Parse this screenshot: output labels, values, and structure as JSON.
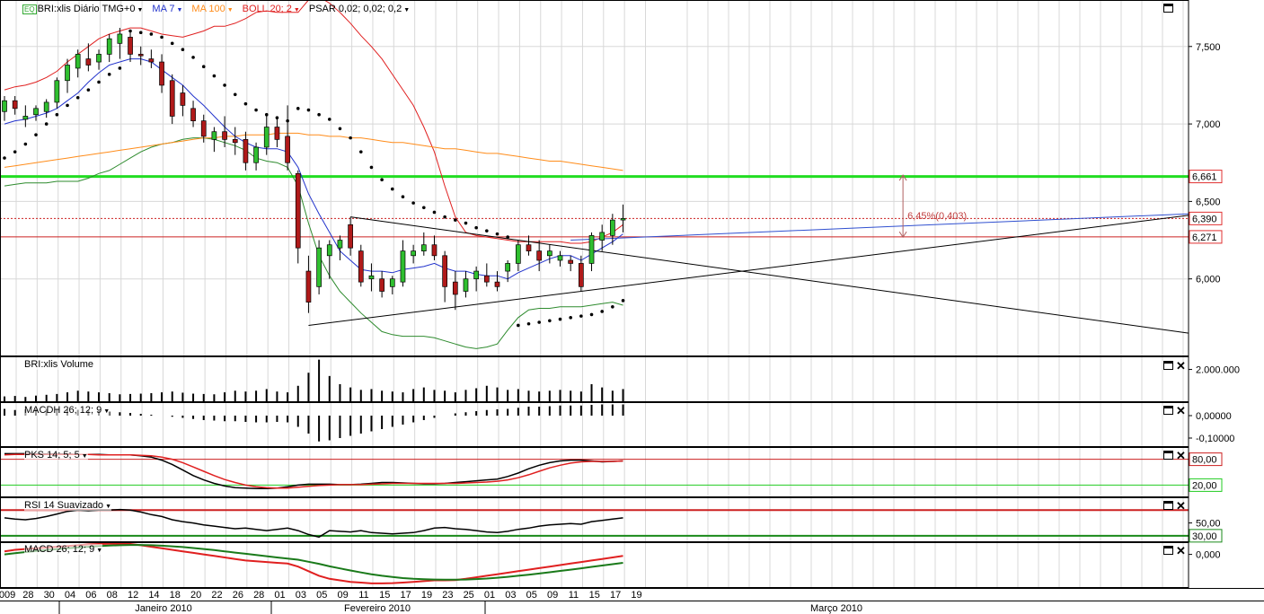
{
  "header": {
    "symbol": "BRI:xlis Diário TMG+0",
    "ma7": "MA 7",
    "ma100": "MA 100",
    "boll": "BOLL 20; 2",
    "psar": "PSAR 0,02; 0,02; 0,2",
    "colors": {
      "ma7": "#2233cc",
      "ma100": "#ff8c1a",
      "boll": "#e02020",
      "psar": "#000000"
    }
  },
  "panels": {
    "volume": "BRI:xlis Volume",
    "macdh": "MACDH 26; 12; 9",
    "pks": "PKS 14; 5; 5",
    "rsi": "RSI 14 Suavizado",
    "macd": "MACD 26; 12; 9"
  },
  "axis_labels": {
    "price": [
      "7,500",
      "7,000",
      "6,500",
      "6,000"
    ],
    "volume": [
      "2.000.000"
    ],
    "macdh": [
      "0,00000",
      "-0,10000"
    ],
    "pks": [
      "80,00",
      "20,00"
    ],
    "rsi": [
      "50,00",
      "30,00"
    ],
    "macd": [
      "0,000"
    ]
  },
  "price_tags": [
    {
      "value": 6.661,
      "label": "6,661",
      "color": "#e03030"
    },
    {
      "value": 6.39,
      "label": "6,390",
      "color": "#e03030"
    },
    {
      "value": 6.271,
      "label": "6,271",
      "color": "#e03030"
    }
  ],
  "measure_label": "6,45%(0,403)",
  "x_ticks": [
    "009",
    "28",
    "30",
    "04",
    "06",
    "08",
    "12",
    "14",
    "18",
    "20",
    "22",
    "26",
    "28",
    "01",
    "03",
    "05",
    "09",
    "11",
    "15",
    "17",
    "19",
    "23",
    "25",
    "01",
    "03",
    "05",
    "09",
    "11",
    "15",
    "17",
    "19"
  ],
  "month_labels": [
    "Janeiro 2010",
    "Fevereiro 2010",
    "Março 2010"
  ],
  "chart_data": {
    "type": "candlestick",
    "price": {
      "ylim": [
        5.5,
        7.8
      ],
      "ohlc": [
        [
          7.08,
          7.18,
          7.02,
          7.15
        ],
        [
          7.15,
          7.18,
          7.06,
          7.1
        ],
        [
          7.03,
          7.12,
          6.98,
          7.05
        ],
        [
          7.06,
          7.12,
          7.02,
          7.1
        ],
        [
          7.08,
          7.16,
          7.04,
          7.14
        ],
        [
          7.14,
          7.3,
          7.1,
          7.28
        ],
        [
          7.28,
          7.42,
          7.2,
          7.38
        ],
        [
          7.36,
          7.48,
          7.3,
          7.45
        ],
        [
          7.42,
          7.52,
          7.34,
          7.38
        ],
        [
          7.4,
          7.48,
          7.35,
          7.45
        ],
        [
          7.45,
          7.58,
          7.4,
          7.55
        ],
        [
          7.52,
          7.62,
          7.42,
          7.58
        ],
        [
          7.56,
          7.6,
          7.4,
          7.45
        ],
        [
          7.45,
          7.5,
          7.38,
          7.44
        ],
        [
          7.42,
          7.48,
          7.36,
          7.4
        ],
        [
          7.4,
          7.45,
          7.2,
          7.25
        ],
        [
          7.28,
          7.32,
          7.0,
          7.05
        ],
        [
          7.2,
          7.25,
          7.05,
          7.12
        ],
        [
          7.1,
          7.15,
          6.98,
          7.02
        ],
        [
          7.02,
          7.06,
          6.88,
          6.92
        ],
        [
          6.9,
          6.98,
          6.82,
          6.95
        ],
        [
          6.95,
          7.05,
          6.85,
          6.9
        ],
        [
          6.9,
          6.98,
          6.8,
          6.88
        ],
        [
          6.9,
          6.95,
          6.7,
          6.75
        ],
        [
          6.75,
          6.88,
          6.7,
          6.85
        ],
        [
          6.85,
          7.05,
          6.8,
          6.98
        ],
        [
          6.98,
          7.05,
          6.85,
          6.9
        ],
        [
          6.92,
          7.12,
          6.7,
          6.75
        ],
        [
          6.68,
          6.7,
          6.1,
          6.2
        ],
        [
          6.05,
          6.15,
          5.78,
          5.85
        ],
        [
          5.95,
          6.25,
          5.9,
          6.2
        ],
        [
          6.15,
          6.25,
          6.0,
          6.22
        ],
        [
          6.2,
          6.28,
          6.12,
          6.25
        ],
        [
          6.35,
          6.4,
          6.15,
          6.2
        ],
        [
          6.18,
          6.22,
          5.95,
          5.98
        ],
        [
          6.0,
          6.1,
          5.92,
          6.02
        ],
        [
          6.0,
          6.05,
          5.88,
          5.92
        ],
        [
          5.95,
          6.02,
          5.9,
          6.0
        ],
        [
          5.98,
          6.25,
          5.95,
          6.18
        ],
        [
          6.15,
          6.22,
          6.1,
          6.18
        ],
        [
          6.18,
          6.3,
          6.15,
          6.22
        ],
        [
          6.22,
          6.28,
          6.12,
          6.15
        ],
        [
          6.15,
          6.18,
          5.85,
          5.95
        ],
        [
          5.98,
          6.05,
          5.8,
          5.9
        ],
        [
          5.92,
          6.05,
          5.88,
          6.0
        ],
        [
          6.0,
          6.08,
          5.92,
          6.05
        ],
        [
          6.02,
          6.1,
          5.95,
          5.98
        ],
        [
          5.98,
          6.05,
          5.92,
          5.95
        ],
        [
          6.05,
          6.12,
          5.98,
          6.1
        ],
        [
          6.1,
          6.25,
          6.05,
          6.22
        ],
        [
          6.22,
          6.28,
          6.15,
          6.18
        ],
        [
          6.18,
          6.25,
          6.05,
          6.12
        ],
        [
          6.15,
          6.22,
          6.1,
          6.18
        ],
        [
          6.12,
          6.18,
          6.08,
          6.15
        ],
        [
          6.12,
          6.15,
          6.05,
          6.1
        ],
        [
          6.1,
          6.15,
          5.92,
          5.95
        ],
        [
          6.1,
          6.3,
          6.05,
          6.28
        ],
        [
          6.25,
          6.35,
          6.18,
          6.3
        ],
        [
          6.28,
          6.42,
          6.22,
          6.38
        ],
        [
          6.38,
          6.48,
          6.3,
          6.39
        ]
      ],
      "ma7": [
        7.0,
        7.02,
        7.03,
        7.05,
        7.07,
        7.1,
        7.15,
        7.2,
        7.27,
        7.33,
        7.38,
        7.4,
        7.42,
        7.42,
        7.4,
        7.35,
        7.3,
        7.25,
        7.18,
        7.12,
        7.05,
        6.98,
        6.92,
        6.88,
        6.85,
        6.84,
        6.84,
        6.82,
        6.72,
        6.55,
        6.42,
        6.3,
        6.18,
        6.12,
        6.06,
        6.05,
        6.05,
        6.04,
        6.06,
        6.07,
        6.08,
        6.1,
        6.07,
        6.05,
        6.05,
        6.03,
        6.02,
        6.02,
        6.0,
        6.04,
        6.07,
        6.1,
        6.13,
        6.15,
        6.15,
        6.12,
        6.16,
        6.2,
        6.24,
        6.29
      ],
      "ma100": [
        6.72,
        6.73,
        6.74,
        6.75,
        6.76,
        6.77,
        6.78,
        6.79,
        6.8,
        6.81,
        6.82,
        6.83,
        6.84,
        6.85,
        6.86,
        6.87,
        6.88,
        6.89,
        6.9,
        6.91,
        6.91,
        6.92,
        6.92,
        6.93,
        6.93,
        6.93,
        6.94,
        6.94,
        6.94,
        6.93,
        6.93,
        6.92,
        6.92,
        6.91,
        6.91,
        6.9,
        6.89,
        6.88,
        6.88,
        6.87,
        6.86,
        6.85,
        6.84,
        6.84,
        6.83,
        6.82,
        6.81,
        6.81,
        6.8,
        6.79,
        6.78,
        6.77,
        6.76,
        6.76,
        6.75,
        6.74,
        6.73,
        6.72,
        6.71,
        6.7
      ],
      "boll_upper": [
        7.22,
        7.24,
        7.25,
        7.27,
        7.3,
        7.34,
        7.4,
        7.45,
        7.5,
        7.55,
        7.58,
        7.6,
        7.62,
        7.62,
        7.6,
        7.58,
        7.57,
        7.56,
        7.58,
        7.6,
        7.63,
        7.63,
        7.65,
        7.68,
        7.72,
        7.73,
        7.72,
        7.72,
        7.72,
        7.8,
        7.82,
        7.78,
        7.72,
        7.65,
        7.57,
        7.5,
        7.42,
        7.32,
        7.22,
        7.12,
        6.98,
        6.82,
        6.6,
        6.4,
        6.3,
        6.28,
        6.27,
        6.26,
        6.25,
        6.24,
        6.24,
        6.24,
        6.24,
        6.24,
        6.23,
        6.23,
        6.24,
        6.27,
        6.3,
        6.35
      ],
      "boll_lower": [
        6.6,
        6.61,
        6.62,
        6.62,
        6.62,
        6.63,
        6.63,
        6.63,
        6.65,
        6.68,
        6.7,
        6.74,
        6.78,
        6.82,
        6.85,
        6.87,
        6.88,
        6.9,
        6.91,
        6.91,
        6.9,
        6.88,
        6.86,
        6.83,
        6.78,
        6.76,
        6.75,
        6.72,
        6.6,
        6.36,
        6.15,
        6.02,
        5.92,
        5.85,
        5.78,
        5.72,
        5.66,
        5.64,
        5.63,
        5.63,
        5.63,
        5.62,
        5.6,
        5.58,
        5.56,
        5.55,
        5.56,
        5.58,
        5.67,
        5.75,
        5.8,
        5.81,
        5.81,
        5.82,
        5.82,
        5.82,
        5.83,
        5.84,
        5.85,
        5.83
      ],
      "psar": [
        6.78,
        6.82,
        6.87,
        6.93,
        7.0,
        7.06,
        7.12,
        7.17,
        7.22,
        7.27,
        7.32,
        7.36,
        7.6,
        7.59,
        7.58,
        7.56,
        7.52,
        7.48,
        7.43,
        7.37,
        7.31,
        7.25,
        7.19,
        7.13,
        7.09,
        7.06,
        7.04,
        7.02,
        7.1,
        7.09,
        7.06,
        7.03,
        6.97,
        6.91,
        6.82,
        6.72,
        6.64,
        6.58,
        6.53,
        6.49,
        6.46,
        6.43,
        6.4,
        6.38,
        6.36,
        6.33,
        6.31,
        6.29,
        6.27,
        5.7,
        5.71,
        5.72,
        5.73,
        5.74,
        5.75,
        5.76,
        5.77,
        5.79,
        5.82,
        5.86
      ],
      "horizontal_lines": [
        {
          "value": 6.661,
          "color": "#22dd22",
          "style": "solid"
        },
        {
          "value": 6.39,
          "color": "#cc2020",
          "style": "dotted"
        },
        {
          "value": 6.271,
          "color": "#cc2020",
          "style": "solid"
        }
      ],
      "trendlines": [
        {
          "from": [
            33,
            6.4
          ],
          "to": [
            120,
            5.65
          ],
          "color": "#000000"
        },
        {
          "from": [
            29,
            5.7
          ],
          "to": [
            120,
            6.41
          ],
          "color": "#000000"
        },
        {
          "from": [
            54,
            6.25
          ],
          "to": [
            120,
            6.42
          ],
          "color": "#3050d0"
        }
      ],
      "measure": {
        "x": 85.7,
        "from": 6.27,
        "to": 6.67
      }
    },
    "volume": {
      "ylim": [
        0,
        2800000
      ],
      "values": [
        350000,
        380000,
        320000,
        400000,
        450000,
        500000,
        600000,
        700000,
        650000,
        600000,
        550000,
        480000,
        500000,
        520000,
        550000,
        600000,
        650000,
        580000,
        520000,
        500000,
        480000,
        600000,
        700000,
        650000,
        700000,
        800000,
        650000,
        600000,
        1000000,
        1800000,
        2600000,
        1600000,
        1100000,
        900000,
        750000,
        800000,
        700000,
        650000,
        600000,
        800000,
        900000,
        750000,
        700000,
        600000,
        750000,
        850000,
        1000000,
        900000,
        750000,
        800000,
        700000,
        650000,
        700000,
        750000,
        700000,
        650000,
        1100000,
        900000,
        700000,
        800000
      ]
    },
    "macdh": {
      "ylim": [
        -0.14,
        0.06
      ],
      "values": [
        0.03,
        0.025,
        0.028,
        0.03,
        0.03,
        0.03,
        0.028,
        0.026,
        0.025,
        0.022,
        0.018,
        0.015,
        0.012,
        0.008,
        0.004,
        0.0,
        -0.005,
        -0.01,
        -0.015,
        -0.02,
        -0.022,
        -0.025,
        -0.025,
        -0.028,
        -0.03,
        -0.03,
        -0.028,
        -0.03,
        -0.05,
        -0.08,
        -0.115,
        -0.11,
        -0.1,
        -0.09,
        -0.08,
        -0.07,
        -0.06,
        -0.05,
        -0.04,
        -0.03,
        -0.02,
        -0.01,
        0.0,
        0.01,
        0.015,
        0.02,
        0.025,
        0.028,
        0.03,
        0.035,
        0.04,
        0.04,
        0.042,
        0.045,
        0.045,
        0.045,
        0.048,
        0.05,
        0.05,
        0.05
      ]
    },
    "pks": {
      "ylim": [
        0,
        100
      ],
      "lines": {
        "80": 80,
        "20": 20
      },
      "k": [
        93,
        93,
        93,
        92,
        92,
        92,
        92,
        91,
        91,
        91,
        90,
        90,
        90,
        88,
        85,
        78,
        68,
        55,
        42,
        32,
        24,
        18,
        14,
        13,
        12,
        12,
        13,
        16,
        20,
        22,
        22,
        22,
        21,
        21,
        22,
        24,
        26,
        26,
        25,
        24,
        23,
        23,
        24,
        26,
        28,
        30,
        32,
        34,
        40,
        48,
        58,
        66,
        72,
        76,
        78,
        78,
        76,
        74,
        75,
        76
      ],
      "d": [
        90,
        91,
        91,
        91,
        91,
        91,
        91,
        91,
        91,
        90,
        90,
        90,
        90,
        89,
        88,
        85,
        80,
        72,
        62,
        52,
        42,
        33,
        26,
        20,
        16,
        14,
        13,
        13,
        15,
        17,
        19,
        20,
        21,
        21,
        21,
        22,
        23,
        24,
        24,
        24,
        24,
        24,
        24,
        24,
        25,
        26,
        27,
        29,
        32,
        37,
        44,
        52,
        60,
        66,
        71,
        74,
        75,
        75,
        75,
        76
      ]
    },
    "rsi": {
      "ylim": [
        20,
        90
      ],
      "lines": {
        "70": 70,
        "30": 30
      },
      "values": [
        58,
        56,
        55,
        57,
        60,
        64,
        68,
        70,
        69,
        70,
        70,
        71,
        70,
        67,
        63,
        60,
        55,
        52,
        50,
        47,
        45,
        43,
        41,
        42,
        40,
        38,
        40,
        42,
        38,
        32,
        28,
        38,
        37,
        36,
        38,
        35,
        34,
        33,
        34,
        35,
        38,
        42,
        43,
        41,
        40,
        38,
        36,
        35,
        37,
        40,
        42,
        45,
        47,
        48,
        49,
        48,
        52,
        54,
        56,
        58
      ]
    },
    "macd": {
      "ylim": [
        -0.22,
        0.08
      ],
      "macd": [
        0.02,
        0.03,
        0.035,
        0.04,
        0.045,
        0.05,
        0.055,
        0.06,
        0.065,
        0.068,
        0.07,
        0.07,
        0.068,
        0.06,
        0.05,
        0.04,
        0.03,
        0.02,
        0.01,
        0.0,
        -0.01,
        -0.02,
        -0.03,
        -0.04,
        -0.045,
        -0.05,
        -0.055,
        -0.06,
        -0.08,
        -0.11,
        -0.14,
        -0.16,
        -0.17,
        -0.18,
        -0.185,
        -0.19,
        -0.19,
        -0.188,
        -0.185,
        -0.18,
        -0.175,
        -0.17,
        -0.17,
        -0.168,
        -0.16,
        -0.15,
        -0.14,
        -0.13,
        -0.12,
        -0.11,
        -0.1,
        -0.09,
        -0.08,
        -0.07,
        -0.06,
        -0.05,
        -0.04,
        -0.03,
        -0.02,
        -0.01
      ],
      "signal": [
        0.0,
        0.008,
        0.015,
        0.022,
        0.028,
        0.034,
        0.04,
        0.045,
        0.05,
        0.054,
        0.058,
        0.06,
        0.062,
        0.062,
        0.06,
        0.057,
        0.053,
        0.048,
        0.042,
        0.035,
        0.028,
        0.02,
        0.012,
        0.004,
        -0.004,
        -0.012,
        -0.02,
        -0.027,
        -0.035,
        -0.048,
        -0.062,
        -0.078,
        -0.092,
        -0.105,
        -0.118,
        -0.13,
        -0.14,
        -0.148,
        -0.155,
        -0.16,
        -0.163,
        -0.165,
        -0.166,
        -0.166,
        -0.165,
        -0.162,
        -0.158,
        -0.153,
        -0.147,
        -0.14,
        -0.133,
        -0.125,
        -0.117,
        -0.108,
        -0.1,
        -0.091,
        -0.082,
        -0.073,
        -0.064,
        -0.055
      ]
    }
  }
}
